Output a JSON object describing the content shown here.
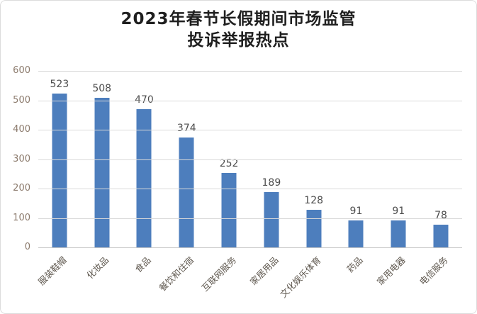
{
  "chart": {
    "title_line1": "2023年春节长假期间市场监管",
    "title_line2": "投诉举报热点"
  },
  "chart_data": {
    "type": "bar",
    "title": "2023年春节长假期间市场监管投诉举报热点",
    "categories": [
      "服装鞋帽",
      "化妆品",
      "食品",
      "餐饮和住宿",
      "互联网服务",
      "家居用品",
      "文化娱乐体育",
      "药品",
      "家用电器",
      "电信服务"
    ],
    "values": [
      523,
      508,
      470,
      374,
      252,
      189,
      128,
      91,
      91,
      78
    ],
    "xlabel": "",
    "ylabel": "",
    "ylim": [
      0,
      600
    ],
    "ytick_interval": 100,
    "yticks": [
      0,
      100,
      200,
      300,
      400,
      500,
      600
    ],
    "grid": true,
    "legend": false,
    "data_labels": true,
    "bar_color": "#4d7ebd",
    "gridline_color": "#d9d9d9",
    "axis_line_color": "#c8c8c8",
    "y_tick_label_color": "#8c7b6d",
    "x_tick_label_color": "#5f584f",
    "value_label_color": "#4d4d4d",
    "title_color": "#1f1f1f",
    "background_color": "#ffffff",
    "border_color": "#dcdcdc"
  }
}
